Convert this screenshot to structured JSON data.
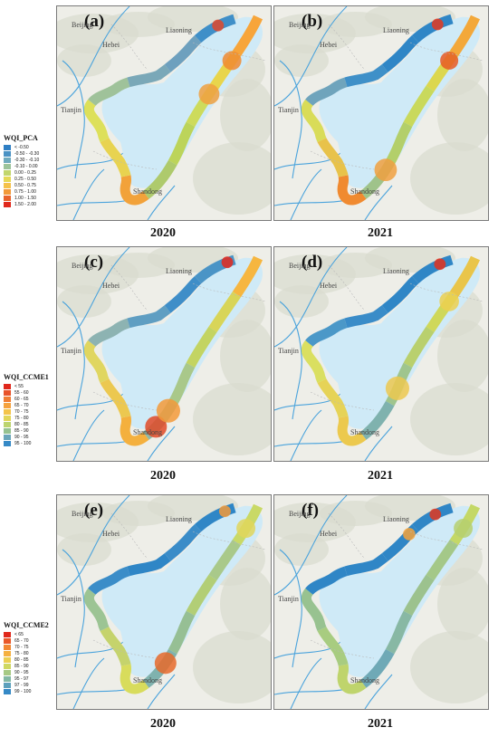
{
  "panels": [
    {
      "id": "a",
      "label": "(a)",
      "year": "2020",
      "variant": "a",
      "colors": [
        "#f7a53a",
        "#e8d54c",
        "#cddb5c",
        "#bcd45a",
        "#aeca6c",
        "#f2a23a",
        "#e8d350",
        "#dde05a",
        "#9fc29a",
        "#7aa8b8",
        "#6ea0be",
        "#3f8fc8"
      ],
      "hot": [
        [
          "#e1482a",
          0.965,
          0.06
        ],
        [
          "#f08a30",
          0.1,
          0.56
        ],
        [
          "#f0a040",
          0.18,
          0.68
        ]
      ]
    },
    {
      "id": "b",
      "label": "(b)",
      "year": "2021",
      "variant": "b",
      "colors": [
        "#f3a83a",
        "#dcd74e",
        "#c9d95c",
        "#b3cf6a",
        "#9fc38a",
        "#f08a30",
        "#e8c24a",
        "#d9dc58",
        "#6fa4bc",
        "#3f90c8",
        "#2f86c6",
        "#2f86c6"
      ],
      "hot": [
        [
          "#e4381f",
          0.97,
          0.05
        ],
        [
          "#e85a25",
          0.1,
          0.5
        ],
        [
          "#f0a040",
          0.35,
          0.8
        ]
      ]
    },
    {
      "id": "c",
      "label": "(c)",
      "year": "2020",
      "variant": "c",
      "colors": [
        "#f6b640",
        "#d8d558",
        "#c3d462",
        "#a9c88a",
        "#90b9a6",
        "#f4b03e",
        "#ecc850",
        "#e0d660",
        "#8db3b2",
        "#5f9ec2",
        "#3f8ec8",
        "#4a94c6"
      ],
      "hot": [
        [
          "#e4281c",
          0.985,
          0.05
        ],
        [
          "#e04a28",
          0.39,
          0.75
        ],
        [
          "#f39a3a",
          0.35,
          0.88
        ]
      ]
    },
    {
      "id": "d",
      "label": "(d)",
      "year": "2021",
      "variant": "d",
      "colors": [
        "#e9c54a",
        "#cfd85a",
        "#b9d06e",
        "#9fc58e",
        "#7fb2ae",
        "#ecc94e",
        "#e6d357",
        "#dadf60",
        "#4b98c8",
        "#3a8cc8",
        "#2f86c6",
        "#2f86c6"
      ],
      "hot": [
        [
          "#e4301c",
          0.975,
          0.05
        ],
        [
          "#ecd050",
          0.1,
          0.6
        ],
        [
          "#ecc850",
          0.3,
          0.88
        ]
      ]
    },
    {
      "id": "e",
      "label": "(e)",
      "year": "2020",
      "variant": "e",
      "colors": [
        "#c9d966",
        "#a9c98a",
        "#b2ce76",
        "#96bf94",
        "#7fb2ae",
        "#d8dc5c",
        "#c5d36c",
        "#9cc494",
        "#3b8dc8",
        "#2f86c6",
        "#3a8cc8",
        "#2f86c6"
      ],
      "hot": [
        [
          "#f29a3a",
          0.98,
          0.06
        ],
        [
          "#e66a2c",
          0.36,
          0.75
        ],
        [
          "#e0d65c",
          0.05,
          0.56
        ]
      ]
    },
    {
      "id": "f",
      "label": "(f)",
      "year": "2021",
      "variant": "f",
      "colors": [
        "#c4d866",
        "#a4c888",
        "#9cc28e",
        "#88b8a4",
        "#6fa9b6",
        "#bfd46c",
        "#a8cc80",
        "#98c290",
        "#2f86c6",
        "#2f86c6",
        "#2f86c6",
        "#2f86c6"
      ],
      "hot": [
        [
          "#e1381f",
          0.965,
          0.05
        ],
        [
          "#f5a23a",
          0.9,
          0.1
        ],
        [
          "#b6d070",
          0.05,
          0.56
        ]
      ]
    }
  ],
  "places": {
    "beijing": "Beijing",
    "hebei": "Hebei",
    "liaoning": "Liaoning",
    "tianjin": "Tianjin",
    "shandong": "Shandong"
  },
  "legends": [
    {
      "title": "WQI_PCA",
      "items": [
        [
          "< -0.50",
          "#2f7fc4"
        ],
        [
          "-0.50 - -0.30",
          "#4a92c4"
        ],
        [
          "-0.30 - -0.10",
          "#6faabe"
        ],
        [
          "-0.10 - 0.00",
          "#9cc39a"
        ],
        [
          "0.00 - 0.25",
          "#c2d66c"
        ],
        [
          "0.25 - 0.50",
          "#e6d956"
        ],
        [
          "0.50 - 0.75",
          "#f5c24a"
        ],
        [
          "0.75 - 1.00",
          "#f29a3a"
        ],
        [
          "1.00 - 1.50",
          "#e8632c"
        ],
        [
          "1.50 - 2.00",
          "#e0281c"
        ]
      ]
    },
    {
      "title": "WQI_CCME1",
      "items": [
        [
          "< 55",
          "#e0281c"
        ],
        [
          "55 - 60",
          "#e8532a"
        ],
        [
          "60 - 65",
          "#f07e34"
        ],
        [
          "65 - 70",
          "#f5a23e"
        ],
        [
          "70 - 75",
          "#f4c44a"
        ],
        [
          "75 - 80",
          "#e2d658"
        ],
        [
          "80 - 85",
          "#bcd46e"
        ],
        [
          "85 - 90",
          "#96c290"
        ],
        [
          "90 - 95",
          "#6aa6ba"
        ],
        [
          "95 - 100",
          "#3589c6"
        ]
      ]
    },
    {
      "title": "WQI_CCME2",
      "items": [
        [
          "< 65",
          "#e0281c"
        ],
        [
          "65 - 70",
          "#e9582a"
        ],
        [
          "70 - 75",
          "#f28834"
        ],
        [
          "75 - 80",
          "#f5b040"
        ],
        [
          "80 - 85",
          "#eccf52"
        ],
        [
          "85 - 90",
          "#cfd862"
        ],
        [
          "90 - 95",
          "#a6c984"
        ],
        [
          "95 - 97",
          "#82b8a4"
        ],
        [
          "97 - 99",
          "#5ca0bc"
        ],
        [
          "99 - 100",
          "#3589c6"
        ]
      ]
    }
  ]
}
